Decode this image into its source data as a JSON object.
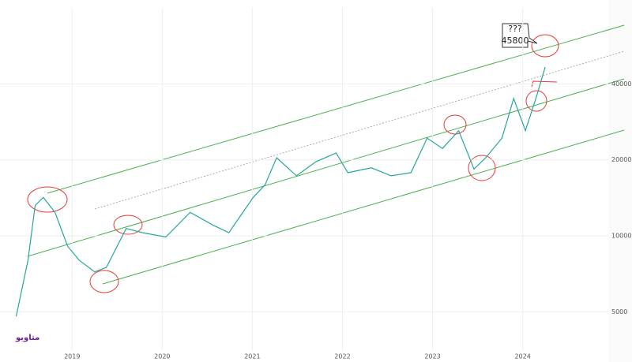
{
  "chart_data": {
    "type": "line",
    "logo": "متاویو",
    "annotations": [
      "???",
      "45800"
    ],
    "series": [
      {
        "color": "#26a69a",
        "x": [
          2018.38,
          2018.51,
          2018.59,
          2018.68,
          2018.81,
          2018.95,
          2019.08,
          2019.25,
          2019.38,
          2019.6,
          2019.78,
          2020.04,
          2020.31,
          2020.57,
          2020.74,
          2021.01,
          2021.14,
          2021.27,
          2021.49,
          2021.71,
          2021.93,
          2022.06,
          2022.32,
          2022.54,
          2022.76,
          2022.94,
          2023.11,
          2023.29,
          2023.46,
          2023.59,
          2023.77,
          2023.9,
          2024.03,
          2024.16,
          2024.25
        ],
        "values": [
          4800,
          8000,
          13200,
          14200,
          12400,
          9100,
          8000,
          7200,
          7500,
          10700,
          10300,
          9900,
          12400,
          11000,
          10300,
          14200,
          15900,
          20400,
          17300,
          19700,
          21300,
          17800,
          18600,
          17300,
          17800,
          24400,
          22200,
          26100,
          18400,
          20400,
          24400,
          35000,
          26100,
          36300,
          46600
        ]
      }
    ],
    "xlim": [
      2018.2,
      2024.95
    ],
    "xticks": [
      2019,
      2020,
      2021,
      2022,
      2023,
      2024
    ],
    "ylim": [
      3500,
      80000
    ],
    "yticks": [
      5000,
      10000,
      20000,
      40000
    ],
    "log_y": true,
    "grid": true
  }
}
